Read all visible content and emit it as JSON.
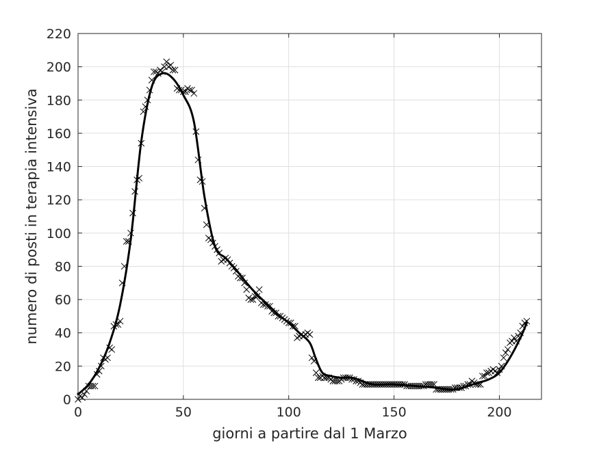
{
  "chart_data": {
    "type": "line",
    "title": "",
    "xlabel": "giorni a partire dal 1 Marzo",
    "ylabel": "numero di posti in terapia intensiva",
    "xlim": [
      0,
      220
    ],
    "ylim": [
      0,
      220
    ],
    "xticks": [
      0,
      50,
      100,
      150,
      200
    ],
    "yticks": [
      0,
      20,
      40,
      60,
      80,
      100,
      120,
      140,
      160,
      180,
      200,
      220
    ],
    "grid": true,
    "legend": "none",
    "colors": {
      "line": "#000000",
      "markers": "#000000",
      "grid": "#dfdfdf",
      "axes": "#262626"
    },
    "series": [
      {
        "style": "markers-x",
        "x": [
          0,
          1,
          2,
          3,
          4,
          5,
          6,
          7,
          8,
          9,
          10,
          11,
          12,
          13,
          14,
          15,
          16,
          17,
          18,
          19,
          20,
          21,
          22,
          23,
          24,
          25,
          26,
          27,
          28,
          29,
          30,
          31,
          32,
          33,
          34,
          35,
          36,
          37,
          38,
          39,
          40,
          41,
          42,
          43,
          44,
          45,
          46,
          47,
          48,
          49,
          50,
          51,
          52,
          53,
          54,
          55,
          56,
          57,
          58,
          59,
          60,
          61,
          62,
          63,
          64,
          65,
          66,
          67,
          68,
          69,
          70,
          71,
          72,
          73,
          74,
          75,
          76,
          77,
          78,
          79,
          80,
          81,
          82,
          83,
          84,
          85,
          86,
          87,
          88,
          89,
          90,
          91,
          92,
          93,
          94,
          95,
          96,
          97,
          98,
          99,
          100,
          101,
          102,
          103,
          104,
          105,
          106,
          107,
          108,
          109,
          110,
          111,
          112,
          113,
          114,
          115,
          116,
          117,
          118,
          119,
          120,
          121,
          122,
          123,
          124,
          125,
          126,
          127,
          128,
          129,
          130,
          131,
          132,
          133,
          134,
          135,
          136,
          137,
          138,
          139,
          140,
          141,
          142,
          143,
          144,
          145,
          146,
          147,
          148,
          149,
          150,
          151,
          152,
          153,
          154,
          155,
          156,
          157,
          158,
          159,
          160,
          161,
          162,
          163,
          164,
          165,
          166,
          167,
          168,
          169,
          170,
          171,
          172,
          173,
          174,
          175,
          176,
          177,
          178,
          179,
          180,
          181,
          182,
          183,
          184,
          185,
          186,
          187,
          188,
          189,
          190,
          191,
          192,
          193,
          194,
          195,
          196,
          197,
          198,
          199,
          200,
          201,
          202,
          203,
          204,
          205,
          206,
          207,
          208,
          209,
          210,
          211,
          212,
          213
        ],
        "y": [
          0,
          2,
          1,
          3,
          5,
          8,
          8,
          8,
          8,
          15,
          17,
          20,
          25,
          24,
          25,
          31,
          30,
          44,
          45,
          45,
          47,
          70,
          80,
          95,
          95,
          100,
          112,
          125,
          132,
          133,
          154,
          173,
          176,
          180,
          186,
          192,
          197,
          197,
          196,
          198,
          197,
          200,
          203,
          200,
          201,
          198,
          198,
          187,
          186,
          186,
          185,
          185,
          187,
          186,
          186,
          184,
          161,
          144,
          132,
          131,
          115,
          105,
          97,
          96,
          94,
          92,
          90,
          88,
          83,
          84,
          85,
          84,
          82,
          80,
          79,
          77,
          74,
          73,
          73,
          70,
          66,
          61,
          60,
          60,
          62,
          62,
          66,
          58,
          57,
          57,
          56,
          56,
          53,
          52,
          52,
          50,
          50,
          49,
          48,
          47,
          46,
          46,
          44,
          44,
          37,
          38,
          39,
          38,
          39,
          40,
          39,
          25,
          23,
          16,
          13,
          13,
          14,
          13,
          13,
          13,
          12,
          11,
          11,
          11,
          11,
          12,
          13,
          13,
          13,
          13,
          12,
          12,
          11,
          11,
          10,
          9,
          9,
          9,
          9,
          9,
          9,
          9,
          9,
          9,
          9,
          9,
          9,
          9,
          9,
          9,
          9,
          9,
          9,
          9,
          9,
          9,
          8,
          8,
          8,
          8,
          8,
          8,
          8,
          8,
          8,
          9,
          9,
          9,
          9,
          9,
          6,
          6,
          6,
          6,
          6,
          6,
          6,
          6,
          6,
          7,
          7,
          7,
          7,
          8,
          8,
          9,
          9,
          11,
          10,
          9,
          9,
          9,
          14,
          14,
          16,
          16,
          17,
          18,
          17,
          16,
          18,
          20,
          25,
          28,
          30,
          34,
          35,
          37,
          35,
          38,
          40,
          44,
          46,
          47
        ]
      },
      {
        "style": "smooth-line",
        "x": [
          0,
          5,
          10,
          15,
          20,
          25,
          30,
          35,
          40,
          45,
          50,
          55,
          60,
          65,
          70,
          75,
          80,
          85,
          90,
          95,
          100,
          105,
          110,
          113,
          116,
          120,
          125,
          130,
          135,
          140,
          150,
          160,
          170,
          175,
          180,
          185,
          190,
          195,
          200,
          205,
          210,
          213
        ],
        "y": [
          3,
          9,
          19,
          34,
          57,
          96,
          155,
          188,
          196,
          193,
          183,
          167,
          122,
          92,
          85,
          78,
          70,
          63,
          57,
          51,
          46,
          40,
          34,
          24,
          16,
          14,
          13,
          13,
          11,
          9,
          9,
          8,
          7,
          6,
          6,
          8,
          10,
          12,
          16,
          25,
          37,
          46
        ]
      }
    ]
  }
}
